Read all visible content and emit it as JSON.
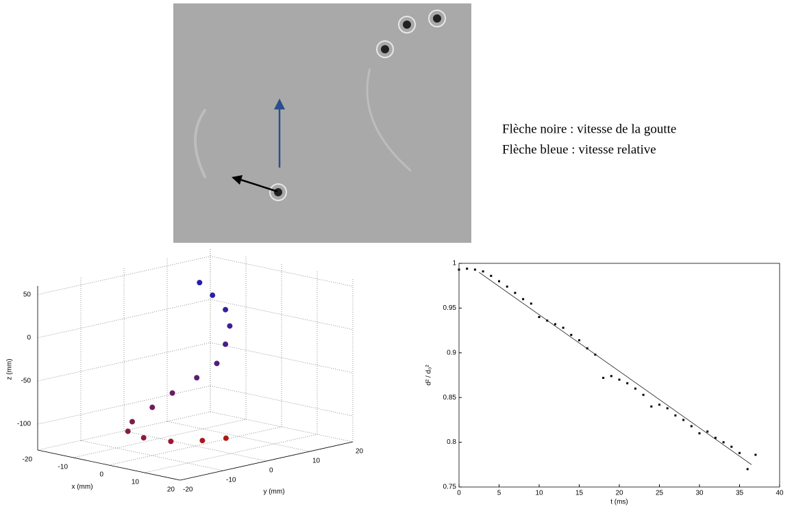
{
  "annotations": [
    "Flèche noire : vitesse de la goutte",
    "Flèche bleue : vitesse relative"
  ],
  "chart_data": [
    {
      "type": "scatter3d",
      "xlabel": "x (mm)",
      "ylabel": "y (mm)",
      "zlabel": "z (mm)",
      "xlim": [
        -20,
        20
      ],
      "ylim": [
        -20,
        20
      ],
      "zlim": [
        -130,
        60
      ],
      "xticks": [
        -20,
        -10,
        0,
        10,
        20
      ],
      "yticks": [
        -20,
        -10,
        0,
        10,
        20
      ],
      "zticks": [
        -100,
        -50,
        0,
        50
      ],
      "grid": true,
      "colormap": [
        "#2020b0",
        "#b01818"
      ],
      "x": [
        0,
        0,
        0,
        0,
        0,
        0,
        -2,
        -4,
        -6,
        -8,
        -8,
        -6,
        -2,
        2,
        5
      ],
      "y": [
        1,
        4,
        7,
        8,
        7,
        5,
        2,
        -2,
        -5,
        -8,
        -9,
        -7,
        -4,
        0,
        3
      ],
      "z": [
        58,
        40,
        20,
        0,
        -20,
        -40,
        -55,
        -70,
        -85,
        -100,
        -110,
        -118,
        -122,
        -122,
        -120
      ]
    },
    {
      "type": "scatter",
      "xlabel": "t (ms)",
      "ylabel": "d² / d₀²",
      "xlim": [
        0,
        40
      ],
      "ylim": [
        0.75,
        1
      ],
      "xticks": [
        0,
        5,
        10,
        15,
        20,
        25,
        30,
        35,
        40
      ],
      "yticks": [
        0.75,
        0.8,
        0.85,
        0.9,
        0.95,
        1
      ],
      "x": [
        0,
        1,
        2,
        3,
        4,
        5,
        6,
        7,
        8,
        9,
        10,
        11,
        12,
        13,
        14,
        15,
        16,
        17,
        18,
        19,
        20,
        21,
        22,
        23,
        24,
        25,
        26,
        27,
        28,
        29,
        30,
        31,
        32,
        33,
        34,
        35,
        36,
        37
      ],
      "values": [
        0.993,
        0.994,
        0.993,
        0.991,
        0.986,
        0.98,
        0.974,
        0.967,
        0.96,
        0.955,
        0.94,
        0.936,
        0.932,
        0.928,
        0.92,
        0.914,
        0.905,
        0.898,
        0.872,
        0.874,
        0.87,
        0.866,
        0.86,
        0.853,
        0.84,
        0.842,
        0.838,
        0.83,
        0.825,
        0.818,
        0.81,
        0.812,
        0.805,
        0.8,
        0.795,
        0.788,
        0.77,
        0.786
      ],
      "color": "#000000",
      "fit": {
        "x": [
          2.5,
          36.5
        ],
        "values": [
          0.99,
          0.775
        ]
      }
    }
  ]
}
